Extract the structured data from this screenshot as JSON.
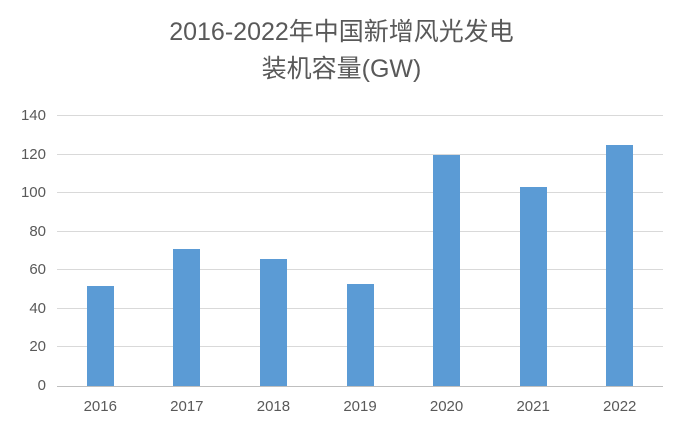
{
  "chart_data": {
    "type": "bar",
    "title": "2016-2022年中国新增风光发电装机容量(GW)",
    "title_lines": [
      "2016-2022年中国新增风光发电",
      "装机容量(GW)"
    ],
    "categories": [
      "2016",
      "2017",
      "2018",
      "2019",
      "2020",
      "2021",
      "2022"
    ],
    "values": [
      52,
      71,
      66,
      53,
      120,
      103,
      125
    ],
    "xlabel": "",
    "ylabel": "",
    "ylim": [
      0,
      140
    ],
    "y_ticks": [
      0,
      20,
      40,
      60,
      80,
      100,
      120,
      140
    ],
    "grid": true,
    "legend_position": "none"
  },
  "colors": {
    "bar": "#5B9BD5",
    "gridline": "#D9D9D9",
    "axis_line": "#BFBFBF",
    "text": "#595959",
    "background": "#FFFFFF"
  }
}
